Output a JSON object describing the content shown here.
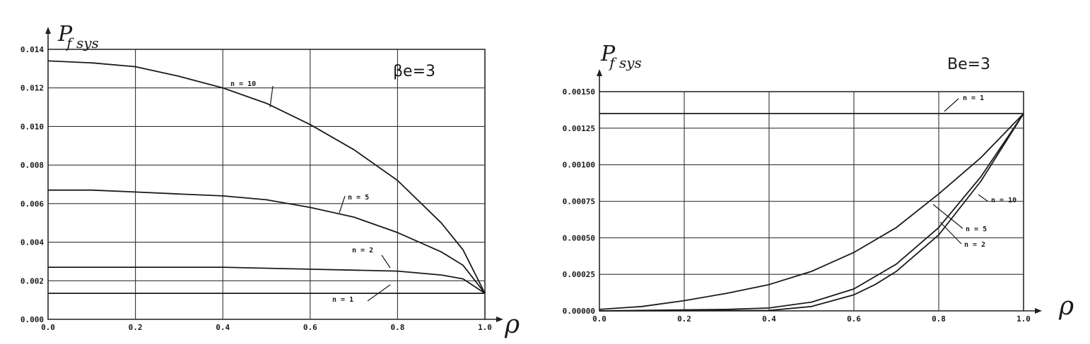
{
  "chart_data": [
    {
      "type": "line",
      "ylabel": "Pf sys",
      "xlabel": "ρ",
      "annotation": "βe=3",
      "xlim": [
        0.0,
        1.0
      ],
      "ylim": [
        0.0,
        0.014
      ],
      "xticks": [
        "0.0",
        "0.2",
        "0.4",
        "0.6",
        "0.8",
        "1.0"
      ],
      "yticks": [
        "0.000",
        "0.002",
        "0.004",
        "0.006",
        "0.008",
        "0.010",
        "0.012",
        "0.014"
      ],
      "xtick_values": [
        0,
        0.2,
        0.4,
        0.6,
        0.8,
        1.0
      ],
      "ytick_values": [
        0,
        0.002,
        0.004,
        0.006,
        0.008,
        0.01,
        0.012,
        0.014
      ],
      "grid": true,
      "series": [
        {
          "name": "n = 10",
          "x": [
            0,
            0.1,
            0.2,
            0.3,
            0.4,
            0.5,
            0.6,
            0.7,
            0.8,
            0.9,
            0.95,
            1.0
          ],
          "values": [
            0.0134,
            0.0133,
            0.0131,
            0.0126,
            0.012,
            0.0112,
            0.0101,
            0.0088,
            0.0072,
            0.005,
            0.0036,
            0.00135
          ]
        },
        {
          "name": "n = 5",
          "x": [
            0,
            0.1,
            0.2,
            0.3,
            0.4,
            0.5,
            0.6,
            0.7,
            0.8,
            0.9,
            0.95,
            1.0
          ],
          "values": [
            0.0067,
            0.0067,
            0.0066,
            0.0065,
            0.0064,
            0.0062,
            0.0058,
            0.0053,
            0.0045,
            0.0035,
            0.0028,
            0.00135
          ]
        },
        {
          "name": "n = 2",
          "x": [
            0,
            0.2,
            0.4,
            0.6,
            0.8,
            0.9,
            0.95,
            1.0
          ],
          "values": [
            0.0027,
            0.0027,
            0.0027,
            0.0026,
            0.0025,
            0.0023,
            0.0021,
            0.00135
          ]
        },
        {
          "name": "n = 1",
          "x": [
            0,
            0.5,
            1.0
          ],
          "values": [
            0.00135,
            0.00135,
            0.00135
          ]
        }
      ]
    },
    {
      "type": "line",
      "ylabel": "Pf sys",
      "xlabel": "ρ",
      "annotation": "Be=3",
      "xlim": [
        0.0,
        1.0
      ],
      "ylim": [
        0.0,
        0.0015
      ],
      "xticks": [
        "0.0",
        "0.2",
        "0.4",
        "0.6",
        "0.8",
        "1.0"
      ],
      "yticks": [
        "0.00000",
        "0.00025",
        "0.00050",
        "0.00075",
        "0.00100",
        "0.00125",
        "0.00150"
      ],
      "xtick_values": [
        0,
        0.2,
        0.4,
        0.6,
        0.8,
        1.0
      ],
      "ytick_values": [
        0,
        0.00025,
        0.0005,
        0.00075,
        0.001,
        0.00125,
        0.0015
      ],
      "grid": true,
      "series": [
        {
          "name": "n = 1",
          "x": [
            0,
            0.5,
            1.0
          ],
          "values": [
            0.00135,
            0.00135,
            0.00135
          ]
        },
        {
          "name": "n = 2",
          "x": [
            0,
            0.1,
            0.2,
            0.3,
            0.4,
            0.5,
            0.6,
            0.7,
            0.8,
            0.9,
            1.0
          ],
          "values": [
            1e-05,
            3e-05,
            7e-05,
            0.00012,
            0.00018,
            0.00027,
            0.0004,
            0.00057,
            0.0008,
            0.00105,
            0.00135
          ]
        },
        {
          "name": "n = 5",
          "x": [
            0,
            0.3,
            0.4,
            0.5,
            0.6,
            0.7,
            0.8,
            0.9,
            1.0
          ],
          "values": [
            0,
            1e-05,
            2e-05,
            6e-05,
            0.00015,
            0.00032,
            0.00057,
            0.00092,
            0.00135
          ]
        },
        {
          "name": "n = 10",
          "x": [
            0,
            0.4,
            0.5,
            0.6,
            0.65,
            0.7,
            0.8,
            0.9,
            1.0
          ],
          "values": [
            0,
            3e-06,
            3e-05,
            0.00011,
            0.00018,
            0.00027,
            0.00052,
            0.00089,
            0.00135
          ]
        }
      ]
    }
  ]
}
